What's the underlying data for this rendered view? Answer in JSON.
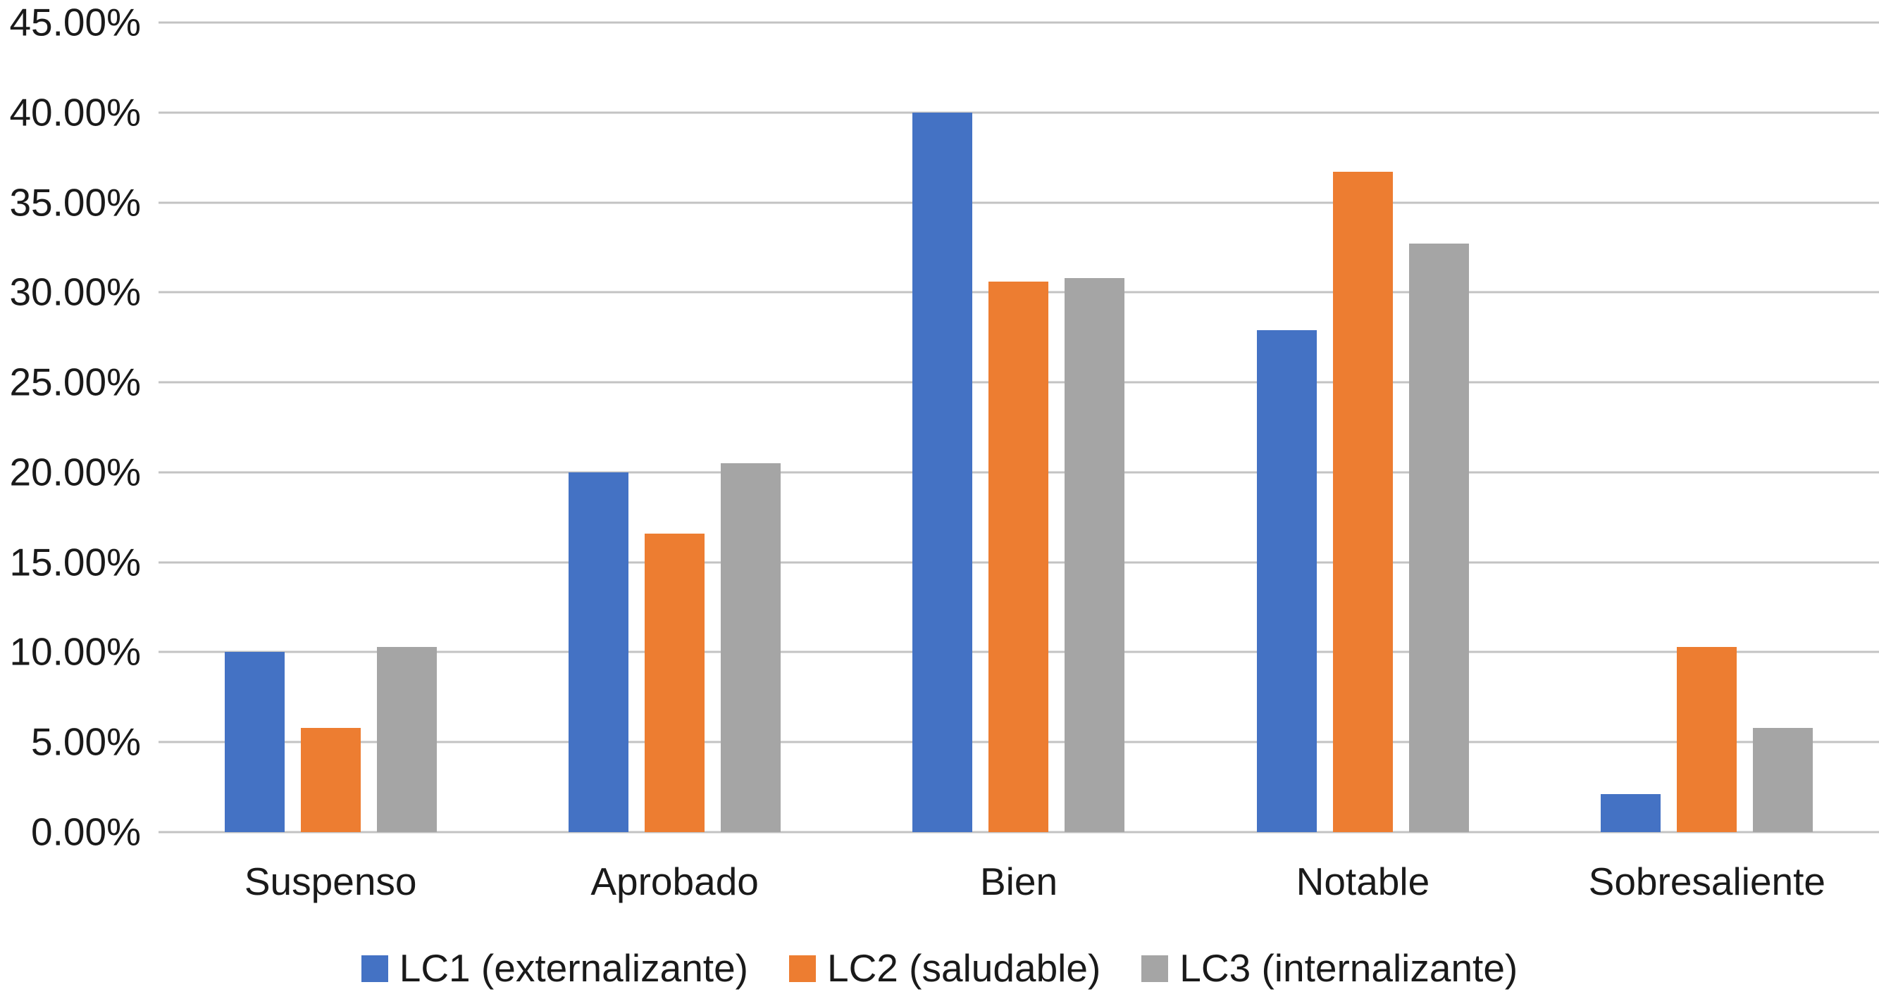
{
  "chart_data": {
    "type": "bar",
    "title": "",
    "xlabel": "",
    "ylabel": "",
    "categories": [
      "Suspenso",
      "Aprobado",
      "Bien",
      "Notable",
      "Sobresaliente"
    ],
    "series": [
      {
        "name": "LC1 (externalizante)",
        "color": "#4472C4",
        "values": [
          10.0,
          20.0,
          40.0,
          27.9,
          2.1
        ]
      },
      {
        "name": "LC2 (saludable)",
        "color": "#ED7D31",
        "values": [
          5.8,
          16.6,
          30.6,
          36.7,
          10.3
        ]
      },
      {
        "name": "LC3 (internalizante)",
        "color": "#A5A5A5",
        "values": [
          10.3,
          20.5,
          30.8,
          32.7,
          5.8
        ]
      }
    ],
    "ylim": [
      0,
      45
    ],
    "ytick_step": 5,
    "yticks": [
      "45.00%",
      "40.00%",
      "35.00%",
      "30.00%",
      "25.00%",
      "20.00%",
      "15.00%",
      "10.00%",
      "5.00%",
      "0.00%"
    ],
    "grid": true,
    "gridline_color": "#c3c3c3",
    "legend_position": "bottom"
  }
}
